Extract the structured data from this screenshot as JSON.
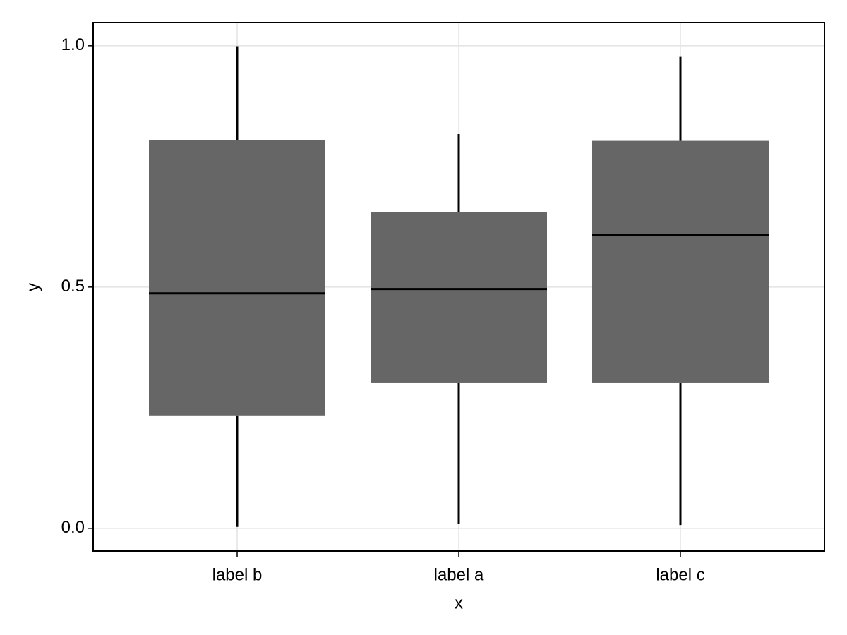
{
  "chart_data": {
    "type": "box",
    "x_label": "x",
    "y_label": "y",
    "categories": [
      "label b",
      "label a",
      "label c"
    ],
    "whisker_low": [
      0.003,
      0.009,
      0.007
    ],
    "q1": [
      0.234,
      0.301,
      0.301
    ],
    "median": [
      0.487,
      0.496,
      0.608
    ],
    "q3": [
      0.804,
      0.655,
      0.803
    ],
    "whisker_high": [
      0.999,
      0.817,
      0.977
    ],
    "color": "#666666",
    "ylim": [
      -0.047,
      1.048
    ],
    "yticks": [
      {
        "value": 0,
        "label": "0.0"
      },
      0.5,
      {
        "value": 1,
        "label": "1.0"
      }
    ],
    "grid": true
  }
}
